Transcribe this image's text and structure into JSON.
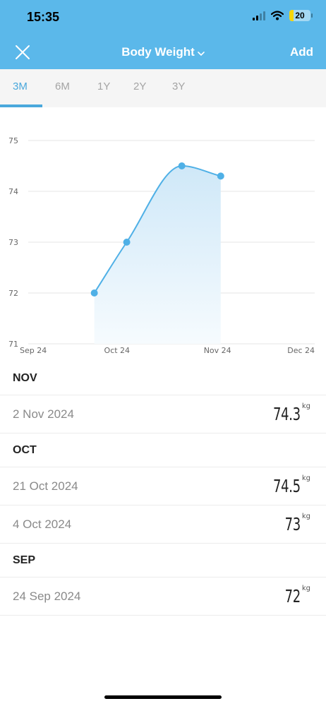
{
  "status_bar": {
    "time": "15:35",
    "battery": "20",
    "battery_level": 0.2
  },
  "nav": {
    "close_icon": "close-icon",
    "title": "Body Weight",
    "title_icon": "chevron-down-icon",
    "add_label": "Add"
  },
  "range_tabs": [
    {
      "label": "3M",
      "active": true
    },
    {
      "label": "6M",
      "active": false
    },
    {
      "label": "1Y",
      "active": false
    },
    {
      "label": "2Y",
      "active": false
    },
    {
      "label": "3Y",
      "active": false
    }
  ],
  "chart_data": {
    "type": "area",
    "y_ticks": [
      "75",
      "74",
      "73",
      "72",
      "71"
    ],
    "x_ticks": [
      "Sep 24",
      "Oct 24",
      "Nov 24",
      "Dec 24"
    ],
    "ylim": [
      71,
      75
    ],
    "xlim": [
      "2024-09-01",
      "2024-12-01"
    ],
    "grid": true,
    "series": [
      {
        "points": [
          {
            "date": "2024-09-24",
            "value": 72
          },
          {
            "date": "2024-10-04",
            "value": 73
          },
          {
            "date": "2024-10-21",
            "value": 74.5
          },
          {
            "date": "2024-11-02",
            "value": 74.3
          }
        ]
      }
    ],
    "colors": {
      "line": "#4fb0e6",
      "fill_top": "#cfe8f8",
      "fill_bottom": "#f6fbfe",
      "grid": "#e6e6e6"
    }
  },
  "entries": [
    {
      "month": "NOV",
      "items": [
        {
          "date": "2 Nov 2024",
          "value": "74.3",
          "unit": "kg"
        }
      ]
    },
    {
      "month": "OCT",
      "items": [
        {
          "date": "21 Oct 2024",
          "value": "74.5",
          "unit": "kg"
        },
        {
          "date": "4 Oct 2024",
          "value": "73",
          "unit": "kg"
        }
      ]
    },
    {
      "month": "SEP",
      "items": [
        {
          "date": "24 Sep 2024",
          "value": "72",
          "unit": "kg"
        }
      ]
    }
  ]
}
